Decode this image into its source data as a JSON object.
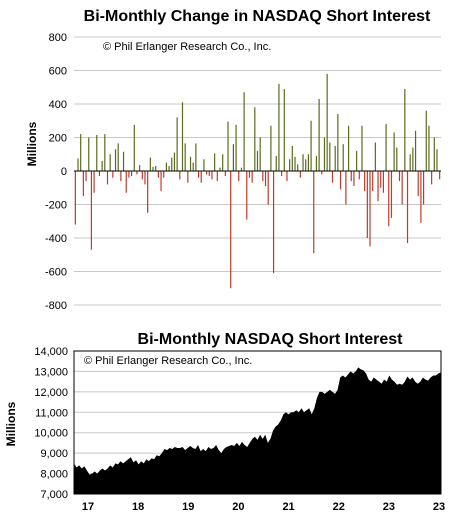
{
  "chart_data": [
    {
      "type": "bar",
      "title": "Bi-Monthly Change in NASDAQ Short Interest",
      "annotation": "© Phil Erlanger Research Co., Inc.",
      "ylabel": "Millions",
      "ylim": [
        -800,
        800
      ],
      "yticks": [
        "800",
        "600",
        "400",
        "200",
        "0",
        "-200",
        "-400",
        "-600",
        "-800"
      ],
      "grid": true,
      "colors": {
        "positive": "#5a6b1e",
        "negative": "#c0392b"
      },
      "series": [
        {
          "values": [
            -320,
            75,
            220,
            -150,
            -60,
            200,
            -470,
            -130,
            215,
            -30,
            60,
            220,
            -80,
            100,
            -40,
            130,
            165,
            -60,
            115,
            -130,
            -40,
            -30,
            275,
            -20,
            35,
            -50,
            -80,
            -250,
            80,
            25,
            30,
            -40,
            -120,
            -40,
            50,
            30,
            80,
            110,
            320,
            -50,
            410,
            165,
            -70,
            85,
            50,
            165,
            -40,
            -70,
            70,
            -20,
            -30,
            -50,
            105,
            -60,
            20,
            100,
            -30,
            295,
            -700,
            160,
            275,
            -60,
            20,
            470,
            -290,
            -40,
            -70,
            380,
            120,
            200,
            -60,
            -90,
            -200,
            270,
            -610,
            90,
            520,
            -30,
            490,
            -60,
            70,
            150,
            85,
            40,
            -40,
            100,
            70,
            100,
            300,
            -490,
            90,
            430,
            -20,
            200,
            580,
            170,
            -70,
            150,
            340,
            -110,
            160,
            -200,
            270,
            -60,
            -90,
            120,
            -50,
            270,
            -120,
            -400,
            -450,
            -120,
            170,
            -180,
            -100,
            -130,
            280,
            -330,
            -280,
            230,
            140,
            -60,
            -200,
            490,
            -430,
            100,
            140,
            240,
            -150,
            -310,
            -200,
            360,
            270,
            -80,
            200,
            130,
            -50
          ]
        }
      ]
    },
    {
      "type": "area",
      "title": "Bi-Monthly NASDAQ Short Interest",
      "annotation": "© Phil Erlanger Research Co., Inc.",
      "ylabel": "Millions",
      "ylim": [
        7000,
        14000
      ],
      "yticks": [
        "14,000",
        "13,000",
        "12,000",
        "11,000",
        "10,000",
        "9,000",
        "8,000",
        "7,000"
      ],
      "xticks": [
        "17",
        "18",
        "19",
        "20",
        "21",
        "22",
        "23",
        "23"
      ],
      "grid": true,
      "colors": {
        "fill": "#000000"
      },
      "series": [
        {
          "values": [
            8500,
            8300,
            8400,
            8250,
            8350,
            8150,
            7950,
            8000,
            8100,
            8000,
            8150,
            8250,
            8150,
            8250,
            8400,
            8300,
            8500,
            8450,
            8600,
            8500,
            8600,
            8700,
            8800,
            8550,
            8650,
            8450,
            8600,
            8500,
            8700,
            8600,
            8750,
            8700,
            8900,
            8850,
            9000,
            9200,
            9150,
            9250,
            9200,
            9300,
            9250,
            9250,
            9300,
            9150,
            9250,
            9350,
            9250,
            9200,
            9400,
            9100,
            9200,
            9100,
            9300,
            9200,
            9250,
            9400,
            9150,
            9000,
            9200,
            9300,
            9350,
            9400,
            9350,
            9500,
            9350,
            9550,
            9400,
            9300,
            9500,
            9700,
            9800,
            9650,
            9900,
            9700,
            9900,
            9500,
            9700,
            10100,
            10300,
            10400,
            10600,
            10900,
            11000,
            10900,
            11000,
            11000,
            11100,
            11000,
            11200,
            11000,
            11100,
            11200,
            10900,
            11200,
            11700,
            12000,
            12000,
            11900,
            12000,
            12100,
            12000,
            11900,
            12100,
            12700,
            12800,
            12700,
            12850,
            13000,
            12900,
            13000,
            13200,
            13100,
            13050,
            12900,
            12600,
            12500,
            12700,
            12600,
            12500,
            12400,
            12600,
            12500,
            12800,
            12600,
            12500,
            12350,
            12400,
            12350,
            12500,
            12750,
            12600,
            12700,
            12500,
            12400,
            12500,
            12700,
            12600,
            12550,
            12700,
            12800,
            12800,
            12900,
            12950
          ]
        }
      ]
    }
  ]
}
